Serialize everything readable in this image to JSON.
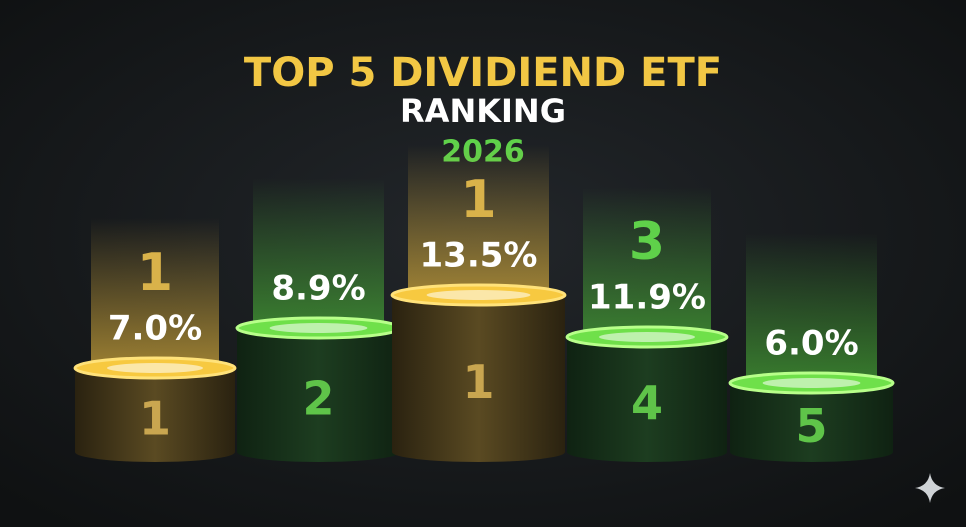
{
  "header": {
    "title": "TOP 5 DIVIDIEND ETF",
    "subtitle": "RANKING",
    "year": "2026"
  },
  "podiums": [
    {
      "rank_label": "1",
      "value": "7.0%",
      "base_label": "1"
    },
    {
      "value": "8.9%",
      "base_label": "2"
    },
    {
      "rank_label": "1",
      "value": "13.5%",
      "base_label": "1"
    },
    {
      "rank_label": "3",
      "value": "11.9%",
      "base_label": "4"
    },
    {
      "value": "6.0%",
      "base_label": "5"
    }
  ]
}
